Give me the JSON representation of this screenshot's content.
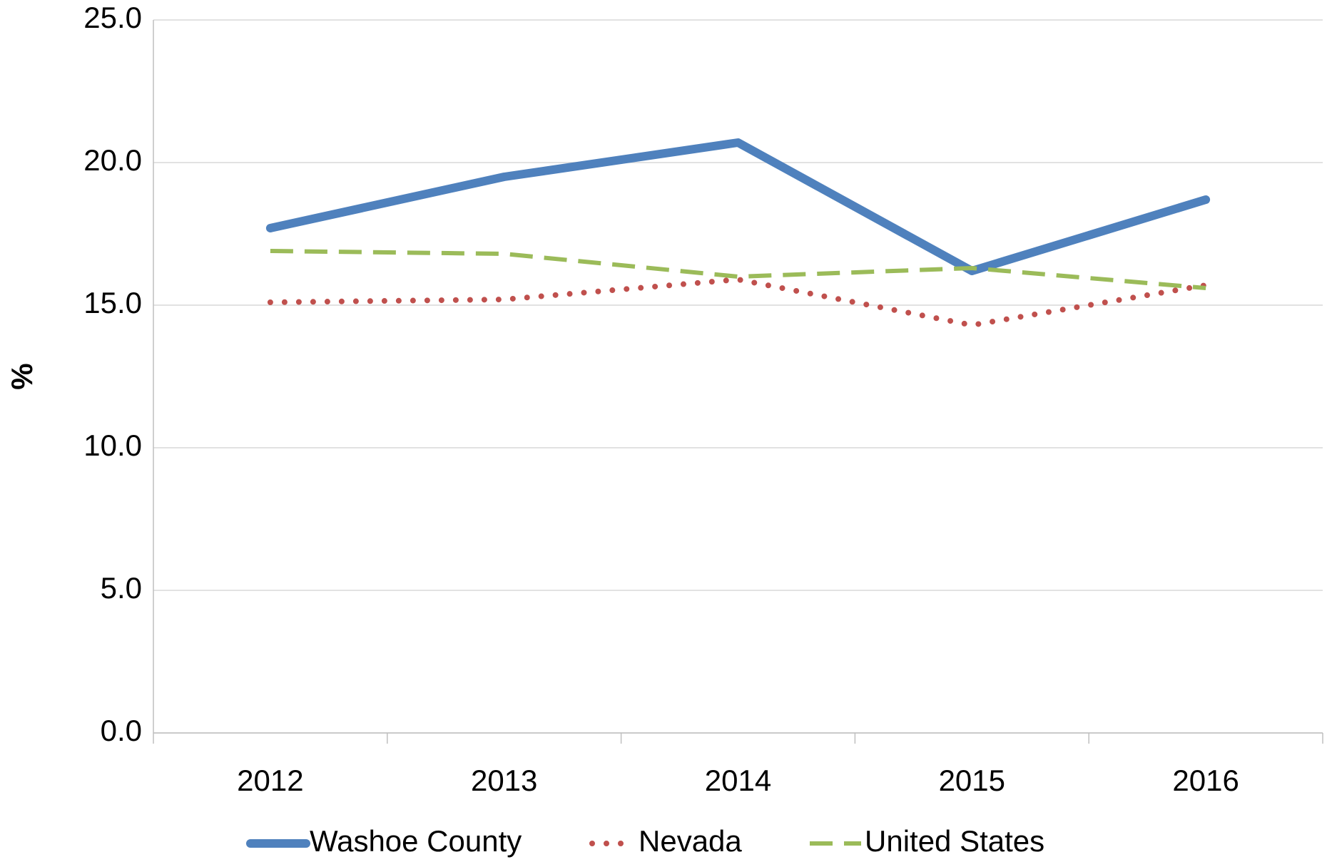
{
  "chart_data": {
    "type": "line",
    "ylabel": "%",
    "categories": [
      "2012",
      "2013",
      "2014",
      "2015",
      "2016"
    ],
    "series": [
      {
        "name": "Washoe County",
        "color": "#4f81bd",
        "style": "solid",
        "values": [
          17.7,
          19.5,
          20.7,
          16.2,
          18.7
        ]
      },
      {
        "name": "Nevada",
        "color": "#c0504d",
        "style": "dotted",
        "values": [
          15.1,
          15.2,
          15.9,
          14.3,
          15.7
        ]
      },
      {
        "name": "United States",
        "color": "#9bbb59",
        "style": "dashed",
        "values": [
          16.9,
          16.8,
          16.0,
          16.3,
          15.6
        ]
      }
    ],
    "ylim": [
      0,
      25
    ],
    "yticks": [
      {
        "value": 0,
        "label": "0.0"
      },
      {
        "value": 5,
        "label": "5.0"
      },
      {
        "value": 10,
        "label": "10.0"
      },
      {
        "value": 15,
        "label": "15.0"
      },
      {
        "value": 20,
        "label": "20.0"
      },
      {
        "value": 25,
        "label": "25.0"
      }
    ],
    "grid": true,
    "legend": "bottom"
  }
}
